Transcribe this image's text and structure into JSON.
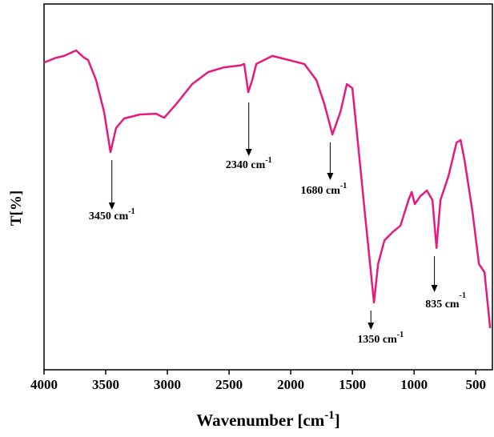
{
  "chart_data": {
    "type": "line",
    "xlabel": {
      "text": "Wavenumber [cm",
      "sup": "-1",
      "end": "]"
    },
    "ylabel": "T[%]",
    "xlim": [
      4000,
      365
    ],
    "ylim": [
      0,
      100
    ],
    "xticks": [
      4000,
      3500,
      3000,
      2500,
      2000,
      1500,
      1000,
      500
    ],
    "series": [
      {
        "color": "#e6197f",
        "x": [
          4000,
          3903,
          3838,
          3740,
          3675,
          3643,
          3578,
          3513,
          3461,
          3416,
          3351,
          3221,
          3091,
          3026,
          2929,
          2799,
          2669,
          2539,
          2409,
          2377,
          2344,
          2312,
          2279,
          2149,
          2019,
          1890,
          1792,
          1727,
          1662,
          1597,
          1545,
          1500,
          1448,
          1403,
          1357,
          1325,
          1292,
          1240,
          1175,
          1110,
          1045,
          1019,
          994,
          948,
          896,
          851,
          818,
          786,
          721,
          656,
          623,
          591,
          526,
          474,
          429,
          383
        ],
        "values": [
          84.0,
          85.3,
          85.8,
          87.3,
          85.3,
          84.7,
          79.2,
          70.5,
          59.5,
          66.1,
          68.7,
          69.8,
          70.0,
          68.9,
          72.6,
          78.1,
          81.4,
          82.7,
          83.2,
          83.6,
          75.9,
          79.2,
          83.6,
          85.8,
          84.7,
          83.6,
          79.2,
          72.6,
          64.3,
          70.5,
          78.1,
          77.0,
          59.5,
          44.2,
          28.9,
          18.4,
          28.9,
          35.4,
          37.6,
          39.4,
          46.4,
          48.6,
          45.3,
          47.5,
          49.0,
          46.4,
          33.3,
          46.4,
          53.0,
          62.1,
          62.8,
          57.3,
          43.1,
          28.9,
          26.7,
          11.4
        ]
      }
    ],
    "annotations": [
      {
        "text": "3450 cm",
        "sup": "-1",
        "x": 3450
      },
      {
        "text": "2340 cm",
        "sup": "-1",
        "x": 2340
      },
      {
        "text": "1680 cm",
        "sup": "-1",
        "x": 1680
      },
      {
        "text": "1350 cm",
        "sup": "-1",
        "x": 1350
      },
      {
        "text": "835 cm",
        "sup": "-1",
        "x": 835
      }
    ]
  }
}
